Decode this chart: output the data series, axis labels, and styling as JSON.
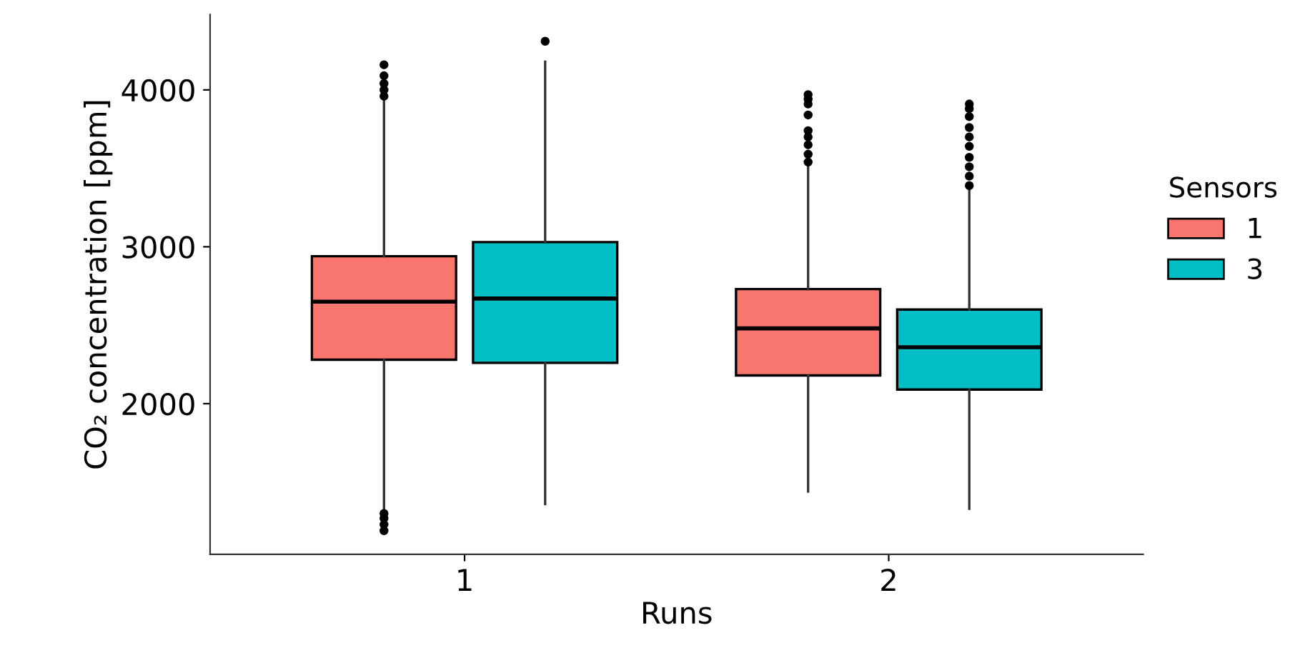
{
  "chart_data": {
    "type": "box",
    "xlabel": "Runs",
    "ylabel": "CO₂ concentration [ppm]",
    "legend_title": "Sensors",
    "legend": "right",
    "grid": false,
    "categories": [
      "1",
      "2"
    ],
    "ylim": [
      1040,
      4480
    ],
    "yticks": [
      2000,
      3000,
      4000
    ],
    "series": [
      {
        "name": "1",
        "color": "#f8766d",
        "boxes": [
          {
            "low": 1330,
            "q1": 2280,
            "median": 2650,
            "q3": 2940,
            "high": 3940,
            "outliers": [
              1190,
              1230,
              1270,
              1300,
              3960,
              4000,
              4040,
              4090,
              4160
            ]
          },
          {
            "low": 1440,
            "q1": 2180,
            "median": 2480,
            "q3": 2730,
            "high": 3510,
            "outliers": [
              3540,
              3590,
              3650,
              3700,
              3740,
              3840,
              3910,
              3940,
              3970
            ]
          }
        ]
      },
      {
        "name": "3",
        "color": "#00bfc4",
        "boxes": [
          {
            "low": 1360,
            "q1": 2260,
            "median": 2670,
            "q3": 3030,
            "high": 4180,
            "outliers": [
              4310
            ]
          },
          {
            "low": 1330,
            "q1": 2090,
            "median": 2360,
            "q3": 2600,
            "high": 3360,
            "outliers": [
              3390,
              3450,
              3510,
              3570,
              3640,
              3700,
              3760,
              3830,
              3880,
              3910
            ]
          }
        ]
      }
    ]
  }
}
